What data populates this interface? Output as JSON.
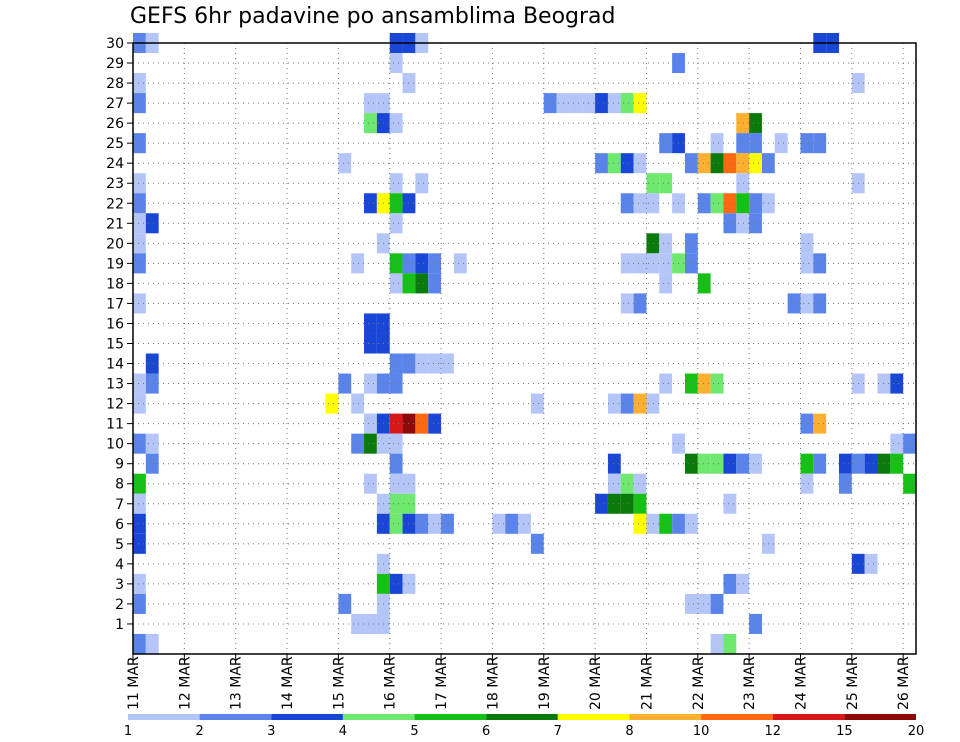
{
  "chart_data": {
    "type": "heatmap",
    "title": "GEFS 6hr padavine po ansamblima Beograd",
    "xlabel": "",
    "ylabel": "",
    "x_tick_labels": [
      "11 MAR",
      "12 MAR",
      "13 MAR",
      "14 MAR",
      "15 MAR",
      "16 MAR",
      "17 MAR",
      "18 MAR",
      "19 MAR",
      "20 MAR",
      "21 MAR",
      "22 MAR",
      "23 MAR",
      "24 MAR",
      "25 MAR",
      "26 MAR"
    ],
    "y_tick_labels": [
      "1",
      "2",
      "3",
      "4",
      "5",
      "6",
      "7",
      "8",
      "9",
      "10",
      "11",
      "12",
      "13",
      "14",
      "15",
      "16",
      "17",
      "18",
      "19",
      "20",
      "21",
      "22",
      "23",
      "24",
      "25",
      "26",
      "27",
      "28",
      "29",
      "30"
    ],
    "ylim": [
      0,
      30
    ],
    "time_steps": 60,
    "steps_per_day": 4,
    "grid": true,
    "colorbar": {
      "labels": [
        "1",
        "2",
        "3",
        "4",
        "5",
        "6",
        "7",
        "8",
        "10",
        "12",
        "15",
        "20"
      ],
      "colors": [
        "#b3c6f7",
        "#5b84ea",
        "#1a46d6",
        "#6ee86e",
        "#16c016",
        "#0a7a0a",
        "#ffff00",
        "#ffb030",
        "#ff6a10",
        "#d81818",
        "#8c0a0a"
      ]
    },
    "cells": [
      [
        0,
        30,
        2
      ],
      [
        1,
        30,
        1
      ],
      [
        20,
        30,
        3
      ],
      [
        21,
        30,
        3
      ],
      [
        22,
        30,
        1
      ],
      [
        53,
        30,
        3
      ],
      [
        54,
        30,
        3
      ],
      [
        20,
        29,
        1
      ],
      [
        42,
        29,
        2
      ],
      [
        0,
        28,
        1
      ],
      [
        21,
        28,
        1
      ],
      [
        56,
        28,
        1
      ],
      [
        0,
        27,
        2
      ],
      [
        18,
        27,
        1
      ],
      [
        19,
        27,
        1
      ],
      [
        32,
        27,
        2
      ],
      [
        33,
        27,
        1
      ],
      [
        34,
        27,
        1
      ],
      [
        35,
        27,
        1
      ],
      [
        36,
        27,
        3
      ],
      [
        37,
        27,
        1
      ],
      [
        38,
        27,
        4
      ],
      [
        39,
        27,
        7
      ],
      [
        18,
        26,
        4
      ],
      [
        19,
        26,
        3
      ],
      [
        20,
        26,
        1
      ],
      [
        47,
        26,
        8
      ],
      [
        48,
        26,
        6
      ],
      [
        0,
        25,
        2
      ],
      [
        41,
        25,
        2
      ],
      [
        42,
        25,
        3
      ],
      [
        45,
        25,
        1
      ],
      [
        47,
        25,
        2
      ],
      [
        48,
        25,
        2
      ],
      [
        50,
        25,
        1
      ],
      [
        52,
        25,
        2
      ],
      [
        53,
        25,
        2
      ],
      [
        16,
        24,
        1
      ],
      [
        36,
        24,
        2
      ],
      [
        37,
        24,
        4
      ],
      [
        38,
        24,
        3
      ],
      [
        39,
        24,
        1
      ],
      [
        43,
        24,
        2
      ],
      [
        44,
        24,
        8
      ],
      [
        45,
        24,
        6
      ],
      [
        46,
        24,
        9
      ],
      [
        47,
        24,
        8
      ],
      [
        48,
        24,
        7
      ],
      [
        49,
        24,
        2
      ],
      [
        0,
        23,
        1
      ],
      [
        20,
        23,
        1
      ],
      [
        22,
        23,
        1
      ],
      [
        40,
        23,
        4
      ],
      [
        41,
        23,
        4
      ],
      [
        47,
        23,
        1
      ],
      [
        56,
        23,
        1
      ],
      [
        0,
        22,
        2
      ],
      [
        18,
        22,
        3
      ],
      [
        19,
        22,
        7
      ],
      [
        20,
        22,
        5
      ],
      [
        21,
        22,
        3
      ],
      [
        38,
        22,
        2
      ],
      [
        39,
        22,
        1
      ],
      [
        40,
        22,
        1
      ],
      [
        42,
        22,
        1
      ],
      [
        44,
        22,
        2
      ],
      [
        45,
        22,
        4
      ],
      [
        46,
        22,
        9
      ],
      [
        47,
        22,
        5
      ],
      [
        48,
        22,
        2
      ],
      [
        49,
        22,
        1
      ],
      [
        0,
        21,
        1
      ],
      [
        1,
        21,
        3
      ],
      [
        20,
        21,
        1
      ],
      [
        46,
        21,
        2
      ],
      [
        47,
        21,
        1
      ],
      [
        48,
        21,
        2
      ],
      [
        0,
        20,
        1
      ],
      [
        19,
        20,
        1
      ],
      [
        40,
        20,
        6
      ],
      [
        41,
        20,
        1
      ],
      [
        43,
        20,
        2
      ],
      [
        52,
        20,
        1
      ],
      [
        0,
        19,
        2
      ],
      [
        17,
        19,
        1
      ],
      [
        20,
        19,
        5
      ],
      [
        21,
        19,
        2
      ],
      [
        22,
        19,
        3
      ],
      [
        23,
        19,
        2
      ],
      [
        25,
        19,
        1
      ],
      [
        38,
        19,
        1
      ],
      [
        39,
        19,
        1
      ],
      [
        40,
        19,
        1
      ],
      [
        41,
        19,
        1
      ],
      [
        42,
        19,
        4
      ],
      [
        43,
        19,
        2
      ],
      [
        52,
        19,
        1
      ],
      [
        53,
        19,
        2
      ],
      [
        20,
        18,
        1
      ],
      [
        21,
        18,
        5
      ],
      [
        22,
        18,
        6
      ],
      [
        23,
        18,
        2
      ],
      [
        41,
        18,
        1
      ],
      [
        44,
        18,
        5
      ],
      [
        0,
        17,
        1
      ],
      [
        38,
        17,
        1
      ],
      [
        39,
        17,
        2
      ],
      [
        51,
        17,
        2
      ],
      [
        52,
        17,
        1
      ],
      [
        53,
        17,
        2
      ],
      [
        18,
        16,
        3
      ],
      [
        19,
        16,
        3
      ],
      [
        18,
        15,
        3
      ],
      [
        19,
        15,
        3
      ],
      [
        1,
        14,
        3
      ],
      [
        20,
        14,
        2
      ],
      [
        21,
        14,
        2
      ],
      [
        22,
        14,
        1
      ],
      [
        23,
        14,
        1
      ],
      [
        24,
        14,
        1
      ],
      [
        0,
        13,
        1
      ],
      [
        1,
        13,
        2
      ],
      [
        16,
        13,
        2
      ],
      [
        18,
        13,
        1
      ],
      [
        19,
        13,
        2
      ],
      [
        20,
        13,
        2
      ],
      [
        41,
        13,
        1
      ],
      [
        43,
        13,
        5
      ],
      [
        44,
        13,
        8
      ],
      [
        45,
        13,
        4
      ],
      [
        56,
        13,
        1
      ],
      [
        58,
        13,
        1
      ],
      [
        59,
        13,
        3
      ],
      [
        0,
        12,
        1
      ],
      [
        15,
        12,
        7
      ],
      [
        17,
        12,
        1
      ],
      [
        31,
        12,
        1
      ],
      [
        37,
        12,
        1
      ],
      [
        38,
        12,
        2
      ],
      [
        39,
        12,
        8
      ],
      [
        40,
        12,
        1
      ],
      [
        18,
        11,
        1
      ],
      [
        19,
        11,
        3
      ],
      [
        20,
        11,
        10
      ],
      [
        21,
        11,
        11
      ],
      [
        22,
        11,
        9
      ],
      [
        23,
        11,
        3
      ],
      [
        52,
        11,
        2
      ],
      [
        53,
        11,
        8
      ],
      [
        0,
        10,
        2
      ],
      [
        1,
        10,
        1
      ],
      [
        17,
        10,
        2
      ],
      [
        18,
        10,
        6
      ],
      [
        19,
        10,
        1
      ],
      [
        20,
        10,
        1
      ],
      [
        42,
        10,
        1
      ],
      [
        59,
        10,
        1
      ],
      [
        60,
        10,
        2
      ],
      [
        1,
        9,
        2
      ],
      [
        20,
        9,
        2
      ],
      [
        37,
        9,
        3
      ],
      [
        43,
        9,
        6
      ],
      [
        44,
        9,
        4
      ],
      [
        45,
        9,
        4
      ],
      [
        46,
        9,
        3
      ],
      [
        47,
        9,
        2
      ],
      [
        48,
        9,
        1
      ],
      [
        52,
        9,
        5
      ],
      [
        53,
        9,
        2
      ],
      [
        55,
        9,
        3
      ],
      [
        56,
        9,
        2
      ],
      [
        57,
        9,
        3
      ],
      [
        58,
        9,
        6
      ],
      [
        59,
        9,
        5
      ],
      [
        0,
        8,
        5
      ],
      [
        18,
        8,
        1
      ],
      [
        20,
        8,
        1
      ],
      [
        21,
        8,
        1
      ],
      [
        37,
        8,
        1
      ],
      [
        38,
        8,
        4
      ],
      [
        39,
        8,
        1
      ],
      [
        52,
        8,
        1
      ],
      [
        55,
        8,
        2
      ],
      [
        60,
        8,
        5
      ],
      [
        0,
        7,
        1
      ],
      [
        19,
        7,
        1
      ],
      [
        20,
        7,
        4
      ],
      [
        21,
        7,
        4
      ],
      [
        36,
        7,
        3
      ],
      [
        37,
        7,
        6
      ],
      [
        38,
        7,
        6
      ],
      [
        39,
        7,
        5
      ],
      [
        46,
        7,
        1
      ],
      [
        0,
        6,
        3
      ],
      [
        19,
        6,
        3
      ],
      [
        20,
        6,
        4
      ],
      [
        21,
        6,
        3
      ],
      [
        22,
        6,
        2
      ],
      [
        23,
        6,
        1
      ],
      [
        24,
        6,
        2
      ],
      [
        28,
        6,
        1
      ],
      [
        29,
        6,
        2
      ],
      [
        30,
        6,
        1
      ],
      [
        39,
        6,
        7
      ],
      [
        40,
        6,
        1
      ],
      [
        41,
        6,
        5
      ],
      [
        42,
        6,
        2
      ],
      [
        43,
        6,
        1
      ],
      [
        0,
        5,
        3
      ],
      [
        31,
        5,
        2
      ],
      [
        49,
        5,
        1
      ],
      [
        19,
        4,
        1
      ],
      [
        56,
        4,
        3
      ],
      [
        57,
        4,
        1
      ],
      [
        0,
        3,
        1
      ],
      [
        19,
        3,
        5
      ],
      [
        20,
        3,
        3
      ],
      [
        21,
        3,
        1
      ],
      [
        46,
        3,
        2
      ],
      [
        47,
        3,
        1
      ],
      [
        0,
        2,
        2
      ],
      [
        16,
        2,
        2
      ],
      [
        19,
        2,
        1
      ],
      [
        43,
        2,
        1
      ],
      [
        44,
        2,
        1
      ],
      [
        45,
        2,
        2
      ],
      [
        17,
        1,
        1
      ],
      [
        18,
        1,
        1
      ],
      [
        19,
        1,
        1
      ],
      [
        48,
        1,
        2
      ],
      [
        0,
        0,
        2
      ],
      [
        1,
        0,
        1
      ],
      [
        45,
        0,
        1
      ],
      [
        46,
        0,
        4
      ]
    ]
  }
}
